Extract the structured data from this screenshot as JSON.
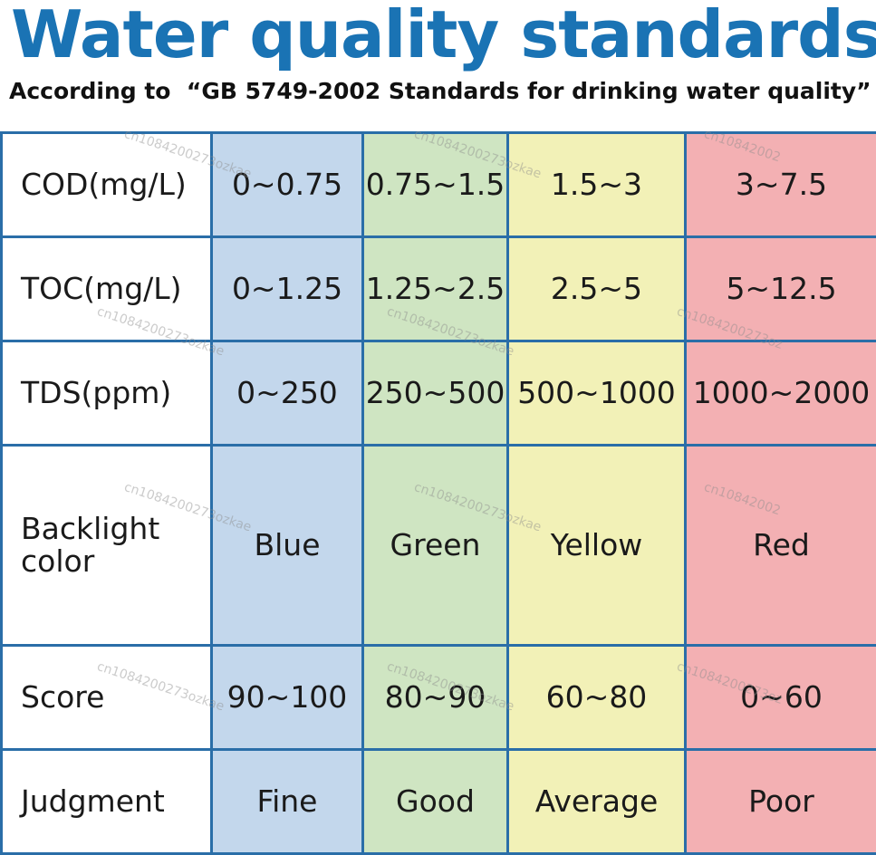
{
  "header": {
    "title": "Water quality standards",
    "subtitle": "According to  “GB 5749-2002 Standards for drinking water quality”"
  },
  "colors": {
    "title": "#1a73b4",
    "border": "#2a6ea8",
    "blue": "#c3d7ec",
    "green": "#cfe5c2",
    "yellow": "#f2f1b7",
    "red": "#f3b0b3"
  },
  "table": {
    "rows": [
      {
        "label": "COD(mg/L)",
        "cells": [
          "0~0.75",
          "0.75~1.5",
          "1.5~3",
          "3~7.5"
        ]
      },
      {
        "label": "TOC(mg/L)",
        "cells": [
          "0~1.25",
          "1.25~2.5",
          "2.5~5",
          "5~12.5"
        ]
      },
      {
        "label": "TDS(ppm)",
        "cells": [
          "0~250",
          "250~500",
          "500~1000",
          "1000~2000"
        ]
      },
      {
        "label": "Backlight color",
        "cells": [
          "Blue",
          "Green",
          "Yellow",
          "Red"
        ]
      },
      {
        "label": "Score",
        "cells": [
          "90~100",
          "80~90",
          "60~80",
          "0~60"
        ]
      },
      {
        "label": "Judgment",
        "cells": [
          "Fine",
          "Good",
          "Average",
          "Poor"
        ]
      }
    ]
  },
  "watermarks": {
    "long": "cn1084200273ozkae",
    "short1": "cn10842002",
    "short2": "cn1084200273oz"
  }
}
